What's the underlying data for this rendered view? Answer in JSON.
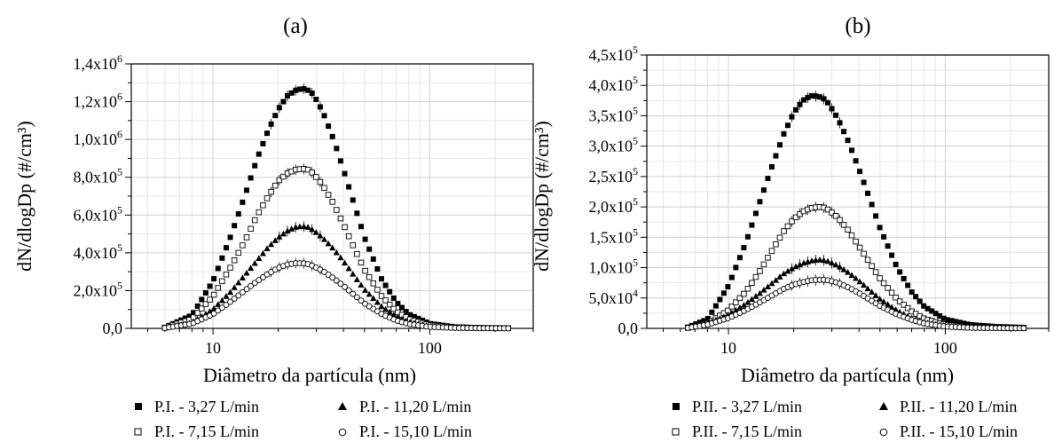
{
  "legend_rows": [
    [
      "P.I. - 3,27 L/min",
      "P.I. - 11,20 L/min"
    ],
    [
      "P.I. - 7,15 L/min",
      "P.I. - 15,10 L/min"
    ]
  ],
  "chart_data": [
    {
      "type": "scatter",
      "title": "(a)",
      "xlabel": "Diâmetro da partícula (nm)",
      "ylabel": "dN/dlogDp (#/cm³)",
      "xscale": "log",
      "xlim": [
        4.2,
        300
      ],
      "ylim": [
        0,
        1400000
      ],
      "x_ticks": [
        10,
        100
      ],
      "x_tick_labels": [
        "10",
        "100"
      ],
      "y_ticks": [
        0,
        200000,
        400000,
        600000,
        800000,
        1000000,
        1200000,
        1400000
      ],
      "y_tick_mantissas": [
        "0,0",
        "2,0x10",
        "4,0x10",
        "6,0x10",
        "8,0x10",
        "1,0x10",
        "1,2x10",
        "1,4x10"
      ],
      "y_tick_exponents": [
        "",
        "5",
        "5",
        "5",
        "5",
        "6",
        "6",
        "6"
      ],
      "grid": true,
      "legend_position": "bottom",
      "series": [
        {
          "name": "P.I. - 3,27 L/min",
          "marker": "filled-square",
          "x": [
            6.0,
            8.0,
            10.0,
            12.0,
            14.0,
            16.0,
            18.0,
            20.0,
            22.0,
            24.0,
            26.0,
            27.5,
            29.0,
            32.0,
            36.0,
            40.0,
            45.0,
            50.0,
            60.0,
            70.0,
            80.0,
            100.0,
            130.0,
            170.0,
            230.0
          ],
          "values": [
            5000,
            70000,
            250000,
            480000,
            700000,
            900000,
            1050000,
            1160000,
            1230000,
            1260000,
            1270000,
            1260000,
            1240000,
            1150000,
            1000000,
            840000,
            650000,
            480000,
            260000,
            140000,
            75000,
            25000,
            8000,
            3000,
            1000
          ]
        },
        {
          "name": "P.I. - 7,15 L/min",
          "marker": "open-square",
          "x": [
            6.0,
            8.0,
            10.0,
            12.0,
            14.0,
            16.0,
            18.0,
            20.0,
            22.0,
            24.0,
            26.0,
            27.5,
            29.0,
            32.0,
            36.0,
            40.0,
            45.0,
            50.0,
            60.0,
            70.0,
            80.0,
            100.0,
            130.0,
            170.0,
            230.0
          ],
          "values": [
            4000,
            50000,
            170000,
            320000,
            460000,
            600000,
            700000,
            780000,
            820000,
            840000,
            845000,
            840000,
            820000,
            760000,
            660000,
            550000,
            420000,
            310000,
            170000,
            90000,
            50000,
            17000,
            6000,
            2500,
            1000
          ]
        },
        {
          "name": "P.I. - 11,20 L/min",
          "marker": "filled-triangle",
          "x": [
            6.0,
            8.0,
            10.0,
            12.0,
            14.0,
            16.0,
            18.0,
            20.0,
            22.0,
            24.0,
            26.0,
            27.5,
            29.0,
            32.0,
            36.0,
            40.0,
            45.0,
            50.0,
            60.0,
            70.0,
            80.0,
            100.0,
            130.0,
            170.0,
            230.0
          ],
          "values": [
            3000,
            30000,
            100000,
            190000,
            280000,
            360000,
            430000,
            480000,
            515000,
            535000,
            540000,
            535000,
            520000,
            480000,
            420000,
            355000,
            275000,
            205000,
            115000,
            62000,
            34000,
            12000,
            4000,
            1500,
            500
          ]
        },
        {
          "name": "P.I. - 15,10 L/min",
          "marker": "open-circle",
          "x": [
            6.0,
            8.0,
            10.0,
            12.0,
            14.0,
            16.0,
            18.0,
            20.0,
            22.0,
            24.0,
            26.0,
            27.5,
            29.0,
            32.0,
            36.0,
            40.0,
            45.0,
            50.0,
            60.0,
            70.0,
            80.0,
            100.0,
            130.0,
            170.0,
            230.0
          ],
          "values": [
            2000,
            25000,
            75000,
            140000,
            200000,
            250000,
            290000,
            320000,
            338000,
            345000,
            345000,
            340000,
            330000,
            305000,
            265000,
            225000,
            175000,
            132000,
            76000,
            42000,
            23000,
            8000,
            2500,
            1000,
            300
          ]
        }
      ]
    },
    {
      "type": "scatter",
      "title": "(b)",
      "xlabel": "Diâmetro da partícula (nm)",
      "ylabel": "dN/dlogDp (#/cm³)",
      "xscale": "log",
      "xlim": [
        4.2,
        300
      ],
      "ylim": [
        0,
        450000
      ],
      "x_ticks": [
        10,
        100
      ],
      "x_tick_labels": [
        "10",
        "100"
      ],
      "y_ticks": [
        0,
        50000,
        100000,
        150000,
        200000,
        250000,
        300000,
        350000,
        400000,
        450000
      ],
      "y_tick_mantissas": [
        "0,0",
        "5,0x10",
        "1,0x10",
        "1,5x10",
        "2,0x10",
        "2,5x10",
        "3,0x10",
        "3,5x10",
        "4,0x10",
        "4,5x10"
      ],
      "y_tick_exponents": [
        "",
        "4",
        "5",
        "5",
        "5",
        "5",
        "5",
        "5",
        "5",
        "5"
      ],
      "grid": true,
      "legend_position": "bottom",
      "series": [
        {
          "name": "P.II. - 3,27 L/min",
          "marker": "filled-square",
          "x": [
            6.5,
            8.0,
            10.0,
            12.0,
            14.0,
            16.0,
            18.0,
            20.0,
            22.0,
            24.0,
            26.0,
            27.5,
            29.0,
            32.0,
            36.0,
            40.0,
            45.0,
            50.0,
            60.0,
            70.0,
            80.0,
            100.0,
            130.0,
            170.0,
            230.0
          ],
          "values": [
            2000,
            15000,
            70000,
            140000,
            210000,
            270000,
            320000,
            355000,
            375000,
            383000,
            382000,
            378000,
            370000,
            345000,
            305000,
            262000,
            212000,
            165000,
            100000,
            60000,
            36000,
            15000,
            6000,
            3000,
            1500
          ]
        },
        {
          "name": "P.II. - 7,15 L/min",
          "marker": "open-square",
          "x": [
            6.5,
            8.0,
            10.0,
            12.0,
            14.0,
            16.0,
            18.0,
            20.0,
            22.0,
            24.0,
            26.0,
            27.5,
            29.0,
            32.0,
            36.0,
            40.0,
            45.0,
            50.0,
            60.0,
            70.0,
            80.0,
            100.0,
            130.0,
            170.0,
            230.0
          ],
          "values": [
            1000,
            8000,
            30000,
            60000,
            95000,
            130000,
            160000,
            180000,
            192000,
            198000,
            200000,
            199000,
            195000,
            182000,
            160000,
            135000,
            107000,
            82000,
            48000,
            28000,
            16000,
            6000,
            2000,
            1000,
            500
          ]
        },
        {
          "name": "P.II. - 11,20 L/min",
          "marker": "filled-triangle",
          "x": [
            6.5,
            8.0,
            10.0,
            12.0,
            14.0,
            16.0,
            18.0,
            20.0,
            22.0,
            24.0,
            26.0,
            27.5,
            29.0,
            32.0,
            36.0,
            40.0,
            45.0,
            50.0,
            60.0,
            70.0,
            80.0,
            100.0,
            130.0,
            170.0,
            230.0
          ],
          "values": [
            1000,
            8000,
            22000,
            40000,
            58000,
            75000,
            90000,
            100000,
            107000,
            111000,
            113000,
            112000,
            110000,
            103000,
            91000,
            78000,
            62000,
            48000,
            29000,
            17000,
            10000,
            4000,
            1500,
            600,
            300
          ]
        },
        {
          "name": "P.II. - 15,10 L/min",
          "marker": "open-circle",
          "x": [
            6.5,
            8.0,
            10.0,
            12.0,
            14.0,
            16.0,
            18.0,
            20.0,
            22.0,
            24.0,
            26.0,
            27.5,
            29.0,
            32.0,
            36.0,
            40.0,
            45.0,
            50.0,
            60.0,
            70.0,
            80.0,
            100.0,
            130.0,
            170.0,
            230.0
          ],
          "values": [
            800,
            6000,
            17000,
            30000,
            43000,
            55000,
            65000,
            72000,
            76000,
            79000,
            80000,
            80000,
            79000,
            75000,
            67000,
            58000,
            47000,
            37000,
            23000,
            14000,
            8000,
            3000,
            1000,
            500,
            200
          ]
        }
      ]
    }
  ],
  "legend_rows_b": [
    [
      "P.II. - 3,27 L/min",
      "P.II. - 11,20 L/min"
    ],
    [
      "P.II. - 7,15 L/min",
      "P.II. - 15,10 L/min"
    ]
  ]
}
